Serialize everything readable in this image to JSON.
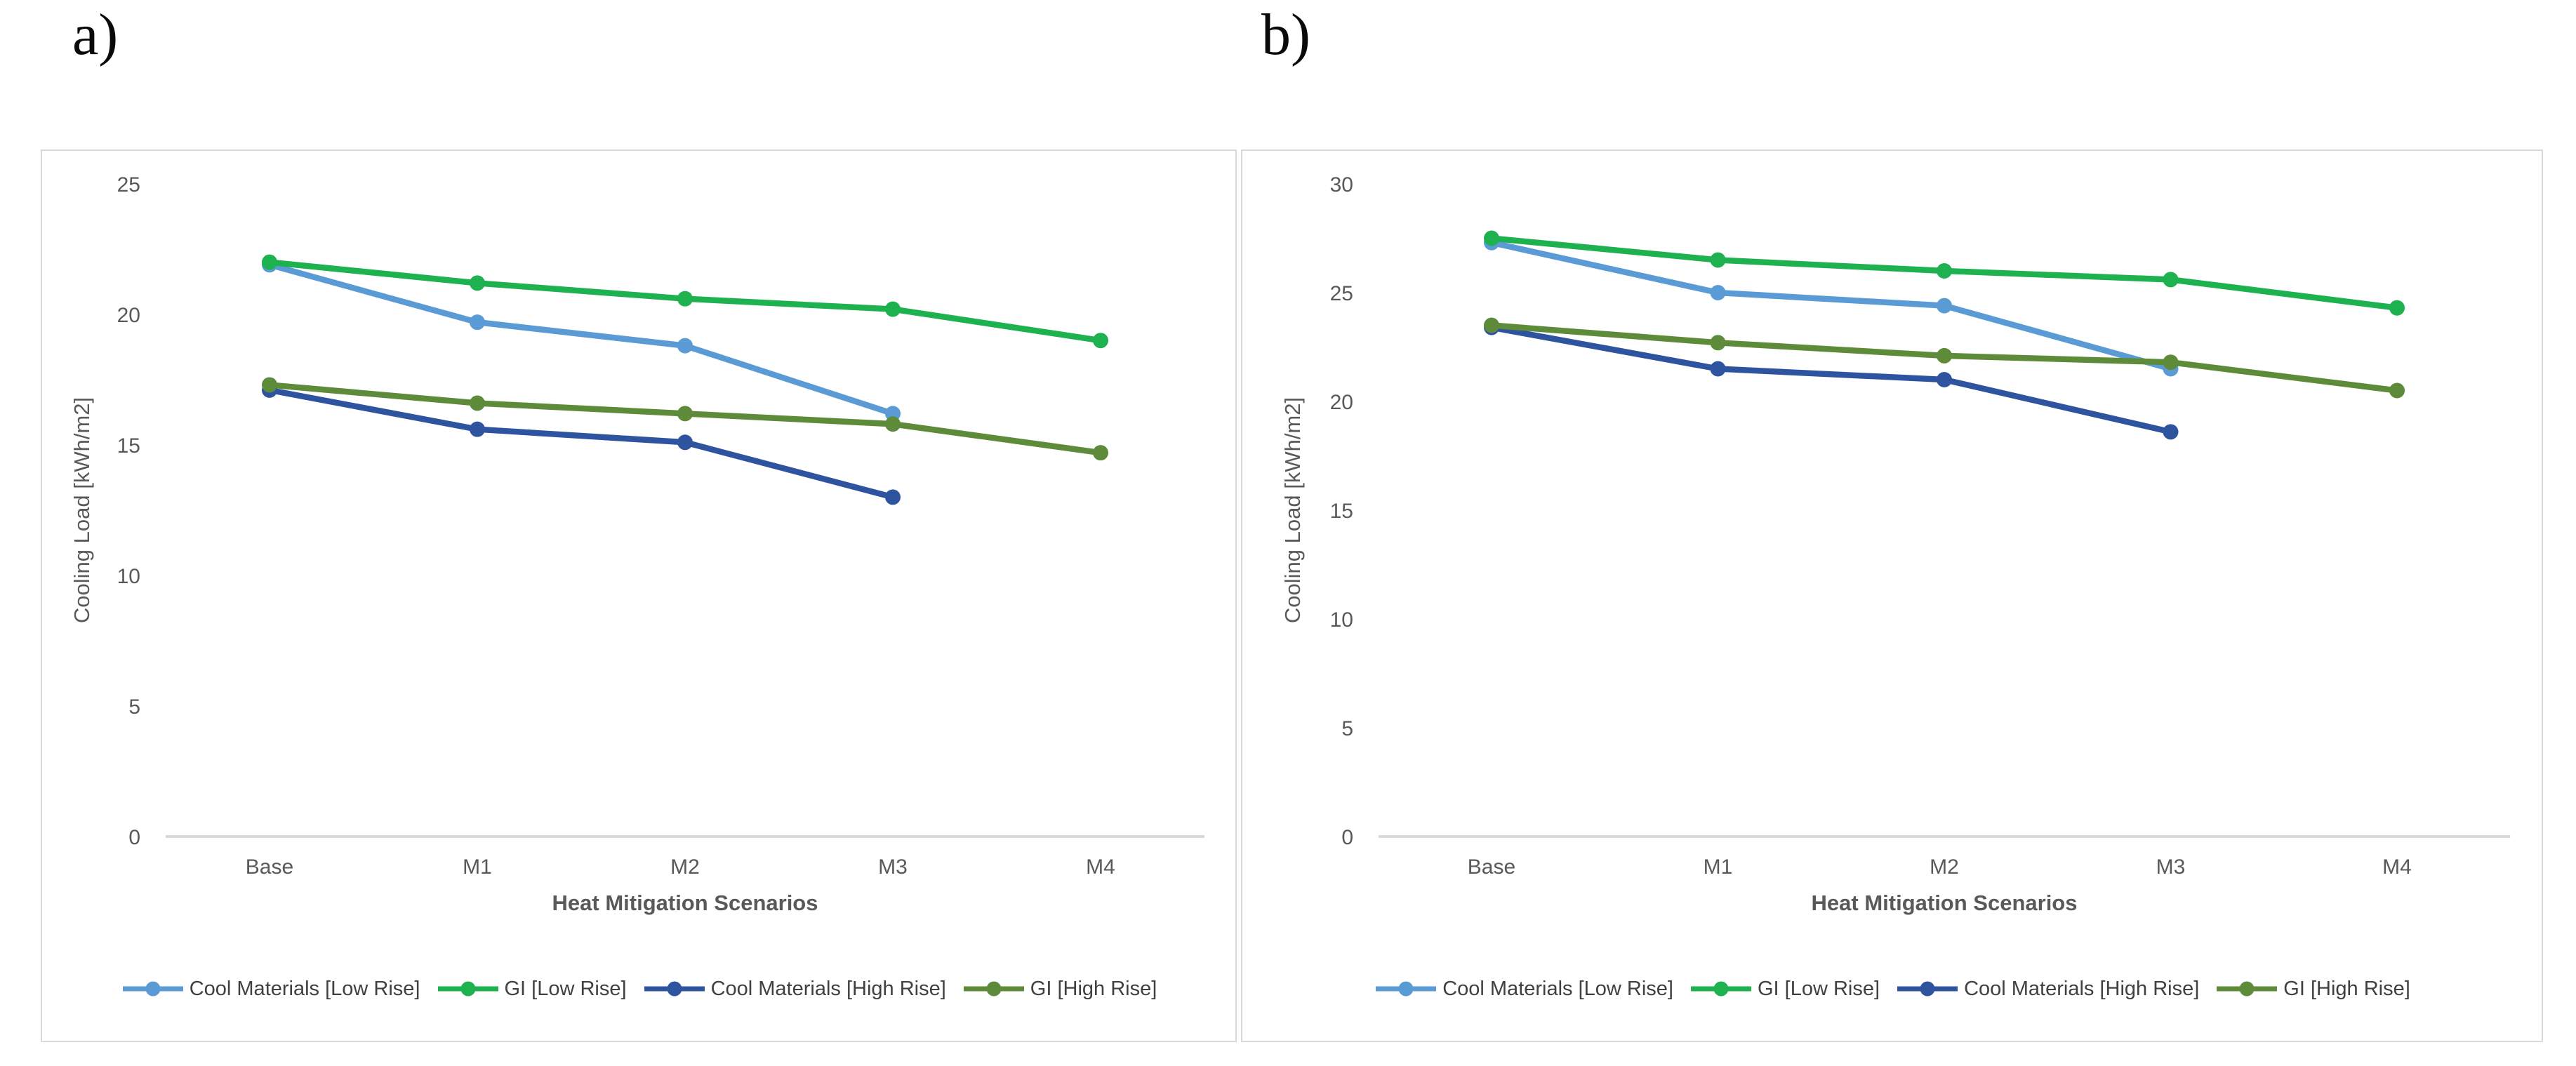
{
  "figure": {
    "panel_a_label": "a)",
    "panel_b_label": "b)"
  },
  "colors": {
    "axis_line": "#d9d9d9",
    "panel_border": "#d9d9d9",
    "tick_text": "#595959",
    "axis_title_text": "#595959",
    "legend_text": "#404040",
    "background": "#ffffff"
  },
  "chart_data": [
    {
      "id": "a",
      "panel_label": "a)",
      "type": "line",
      "title": "",
      "categories": [
        "Base",
        "M1",
        "M2",
        "M3",
        "M4"
      ],
      "series": [
        {
          "name": "Cool Materials [Low Rise]",
          "color": "#5B9BD5",
          "values": [
            21.9,
            19.7,
            18.8,
            16.2,
            null
          ]
        },
        {
          "name": "GI [Low Rise]",
          "color": "#1DB14F",
          "values": [
            22.0,
            21.2,
            20.6,
            20.2,
            19.0
          ]
        },
        {
          "name": "Cool Materials [High Rise]",
          "color": "#2E549F",
          "values": [
            17.1,
            15.6,
            15.1,
            13.0,
            null
          ]
        },
        {
          "name": "GI [High Rise]",
          "color": "#5E8B3A",
          "values": [
            17.3,
            16.6,
            16.2,
            15.8,
            14.7
          ]
        }
      ],
      "xlabel": "Heat Mitigation Scenarios",
      "ylabel": "Cooling Load [kWh/m2]",
      "ylim": [
        0,
        25
      ],
      "ytick_step": 5,
      "yticks": [
        0,
        5,
        10,
        15,
        20,
        25
      ],
      "grid": false,
      "legend_position": "bottom",
      "marker": "circle"
    },
    {
      "id": "b",
      "panel_label": "b)",
      "type": "line",
      "title": "",
      "categories": [
        "Base",
        "M1",
        "M2",
        "M3",
        "M4"
      ],
      "series": [
        {
          "name": "Cool Materials [Low Rise]",
          "color": "#5B9BD5",
          "values": [
            27.3,
            25.0,
            24.4,
            21.5,
            null
          ]
        },
        {
          "name": "GI [Low Rise]",
          "color": "#1DB14F",
          "values": [
            27.5,
            26.5,
            26.0,
            25.6,
            24.3
          ]
        },
        {
          "name": "Cool Materials [High Rise]",
          "color": "#2E549F",
          "values": [
            23.4,
            21.5,
            21.0,
            18.6,
            null
          ]
        },
        {
          "name": "GI [High Rise]",
          "color": "#5E8B3A",
          "values": [
            23.5,
            22.7,
            22.1,
            21.8,
            20.5
          ]
        }
      ],
      "xlabel": "Heat Mitigation Scenarios",
      "ylabel": "Cooling Load [kWh/m2]",
      "ylim": [
        0,
        30
      ],
      "ytick_step": 5,
      "yticks": [
        0,
        5,
        10,
        15,
        20,
        25,
        30
      ],
      "grid": false,
      "legend_position": "bottom",
      "marker": "circle"
    }
  ]
}
